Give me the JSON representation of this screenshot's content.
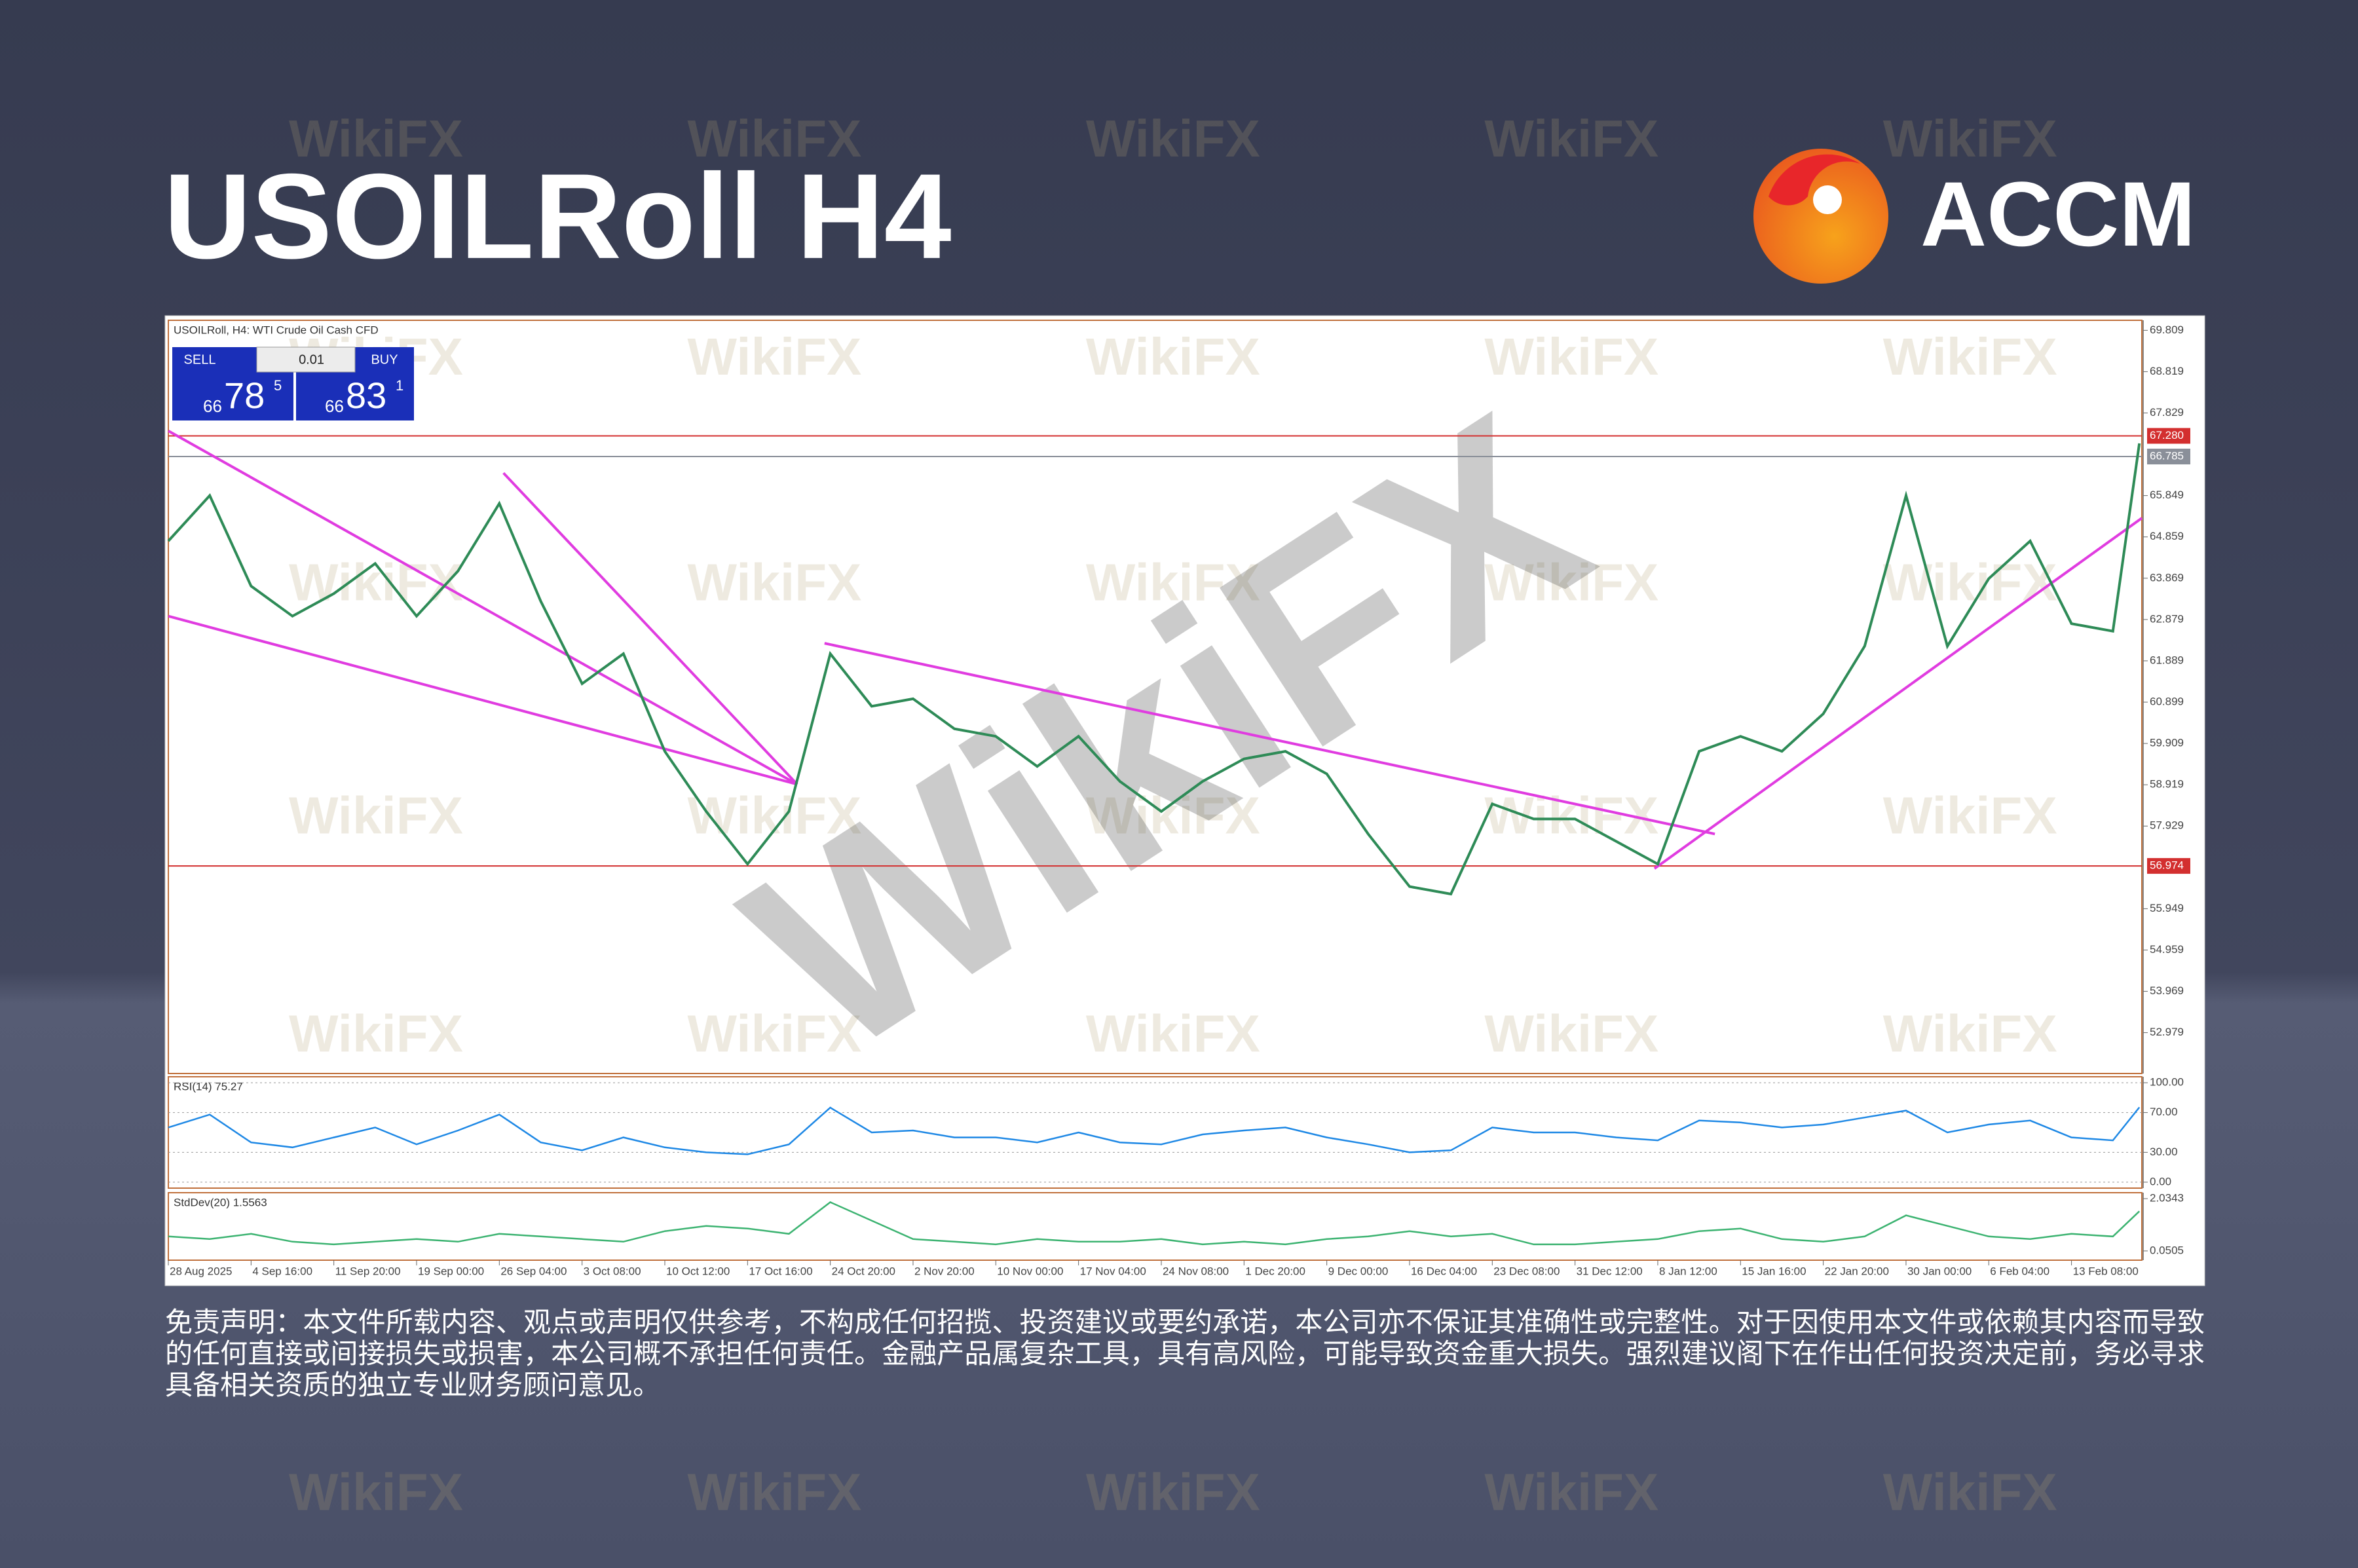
{
  "header": {
    "title": "USOILRoll H4",
    "brand": "ACCM"
  },
  "watermark": "WikiFX",
  "trade_panel": {
    "sell": "SELL",
    "buy": "BUY",
    "volume": "0.01",
    "sell_price": [
      "66",
      "78",
      "5"
    ],
    "buy_price": [
      "66",
      "83",
      "1"
    ]
  },
  "chart_data": [
    {
      "type": "line",
      "title": "USOILRoll, H4:  WTI Crude Oil Cash CFD",
      "color": "#2e8b57",
      "x": [
        0,
        0.5,
        1,
        1.5,
        2,
        2.5,
        3,
        3.5,
        4,
        4.5,
        5,
        5.5,
        6,
        6.5,
        7,
        7.5,
        8,
        8.5,
        9,
        9.5,
        10,
        10.5,
        11,
        11.5,
        12,
        12.5,
        13,
        13.5,
        14,
        14.5,
        15,
        15.5,
        16,
        16.5,
        17,
        17.5,
        18,
        18.5,
        19,
        19.5,
        20,
        20.5,
        21,
        21.5,
        22,
        22.5,
        23,
        23.5,
        23.82
      ],
      "values": [
        64.76,
        65.85,
        63.68,
        62.96,
        63.5,
        64.22,
        62.96,
        64.04,
        65.66,
        63.32,
        61.34,
        62.06,
        59.72,
        58.28,
        57.02,
        58.28,
        62.06,
        60.8,
        60.98,
        60.26,
        60.08,
        59.36,
        60.08,
        59.0,
        58.28,
        59.0,
        59.54,
        59.72,
        59.18,
        57.74,
        56.48,
        56.3,
        58.46,
        58.1,
        58.1,
        57.56,
        57.02,
        59.72,
        60.08,
        59.72,
        60.62,
        62.24,
        65.85,
        62.24,
        63.86,
        64.76,
        62.78,
        62.6,
        67.1
      ],
      "xlim": [
        0,
        23.85
      ],
      "xticks": [
        {
          "value": 0,
          "label": "28 Aug 2025"
        },
        {
          "value": 1,
          "label": "4 Sep 16:00"
        },
        {
          "value": 2,
          "label": "11 Sep 20:00"
        },
        {
          "value": 3,
          "label": "19 Sep 00:00"
        },
        {
          "value": 4,
          "label": "26 Sep 04:00"
        },
        {
          "value": 5,
          "label": "3 Oct 08:00"
        },
        {
          "value": 6,
          "label": "10 Oct 12:00"
        },
        {
          "value": 7,
          "label": "17 Oct 16:00"
        },
        {
          "value": 8,
          "label": "24 Oct 20:00"
        },
        {
          "value": 9,
          "label": "2 Nov 20:00"
        },
        {
          "value": 10,
          "label": "10 Nov 00:00"
        },
        {
          "value": 11,
          "label": "17 Nov 04:00"
        },
        {
          "value": 12,
          "label": "24 Nov 08:00"
        },
        {
          "value": 13,
          "label": "1 Dec 20:00"
        },
        {
          "value": 14,
          "label": "9 Dec 00:00"
        },
        {
          "value": 15,
          "label": "16 Dec 04:00"
        },
        {
          "value": 16,
          "label": "23 Dec 08:00"
        },
        {
          "value": 17,
          "label": "31 Dec 12:00"
        },
        {
          "value": 18,
          "label": "8 Jan 12:00"
        },
        {
          "value": 19,
          "label": "15 Jan 16:00"
        },
        {
          "value": 20,
          "label": "22 Jan 20:00"
        },
        {
          "value": 21,
          "label": "30 Jan 00:00"
        },
        {
          "value": 22,
          "label": "6 Feb 04:00"
        },
        {
          "value": 23,
          "label": "13 Feb 08:00"
        }
      ],
      "ylim": [
        52.0,
        70.05
      ],
      "yticks": [
        69.809,
        68.819,
        67.829,
        65.849,
        64.859,
        63.869,
        62.879,
        61.889,
        60.899,
        59.909,
        58.919,
        57.929,
        55.949,
        54.959,
        53.969,
        52.979
      ],
      "levels": [
        {
          "value": 67.28,
          "label": "67.280",
          "color": "#d32f2f"
        },
        {
          "value": 66.785,
          "label": "66.785",
          "color": "#8a8f99"
        },
        {
          "value": 56.974,
          "label": "56.974",
          "color": "#d32f2f"
        }
      ],
      "trend_color": "#e03ce0",
      "trendlines": [
        {
          "x": [
            0,
            7.6
          ],
          "y": [
            67.4,
            58.93
          ]
        },
        {
          "x": [
            0,
            7.6
          ],
          "y": [
            62.96,
            58.93
          ]
        },
        {
          "x": [
            4.05,
            7.6
          ],
          "y": [
            66.39,
            58.93
          ]
        },
        {
          "x": [
            7.93,
            18.69
          ],
          "y": [
            62.31,
            57.74
          ]
        },
        {
          "x": [
            17.96,
            23.85
          ],
          "y": [
            56.91,
            65.31
          ]
        }
      ]
    },
    {
      "type": "line",
      "title": "RSI(14) 75.27",
      "color": "#1e88e5",
      "values": [
        55,
        68,
        40,
        35,
        45,
        55,
        38,
        52,
        68,
        40,
        32,
        45,
        35,
        30,
        28,
        38,
        75,
        50,
        52,
        45,
        45,
        40,
        50,
        40,
        38,
        48,
        52,
        55,
        45,
        38,
        30,
        32,
        55,
        50,
        50,
        45,
        42,
        62,
        60,
        55,
        58,
        65,
        72,
        50,
        58,
        62,
        45,
        42,
        75.27
      ],
      "ylim": [
        -6,
        106
      ],
      "yticks": [
        {
          "value": 100,
          "label": "100.00"
        },
        {
          "value": 70,
          "label": "70.00"
        },
        {
          "value": 30,
          "label": "30.00"
        },
        {
          "value": 0,
          "label": "0.00"
        }
      ]
    },
    {
      "type": "line",
      "title": "StdDev(20) 1.5563",
      "color": "#3cb371",
      "values": [
        0.6,
        0.5,
        0.7,
        0.4,
        0.3,
        0.4,
        0.5,
        0.4,
        0.7,
        0.6,
        0.5,
        0.4,
        0.8,
        1.0,
        0.9,
        0.7,
        1.9,
        1.2,
        0.5,
        0.4,
        0.3,
        0.5,
        0.4,
        0.4,
        0.5,
        0.3,
        0.4,
        0.3,
        0.5,
        0.6,
        0.8,
        0.6,
        0.7,
        0.3,
        0.3,
        0.4,
        0.5,
        0.8,
        0.9,
        0.5,
        0.4,
        0.6,
        1.4,
        1.0,
        0.6,
        0.5,
        0.7,
        0.6,
        1.5563
      ],
      "ylim": [
        -0.3,
        2.26
      ],
      "yticks": [
        2.0343,
        0.0505
      ]
    }
  ],
  "disclaimer": "免责声明：本文件所载内容、观点或声明仅供参考，不构成任何招揽、投资建议或要约承诺，本公司亦不保证其准确性或完整性。对于因使用本文件或依赖其内容而导致的任何直接或间接损失或损害，本公司概不承担任何责任。金融产品属复杂工具，具有高风险，可能导致资金重大损失。强烈建议阁下在作出任何投资决定前，务必寻求具备相关资质的独立专业财务顾问意见。"
}
